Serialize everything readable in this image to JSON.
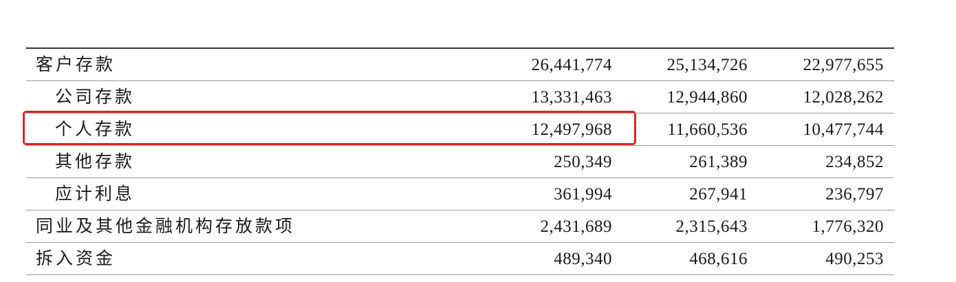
{
  "table": {
    "rows": [
      [
        "客户存款",
        "26,441,774",
        "25,134,726",
        "22,977,655"
      ],
      [
        "公司存款",
        "13,331,463",
        "12,944,860",
        "12,028,262"
      ],
      [
        "个人存款",
        "12,497,968",
        "11,660,536",
        "10,477,744"
      ],
      [
        "其他存款",
        "250,349",
        "261,389",
        "234,852"
      ],
      [
        "应计利息",
        "361,994",
        "267,941",
        "236,797"
      ],
      [
        "同业及其他金融机构存放款项",
        "2,431,689",
        "2,315,643",
        "1,776,320"
      ],
      [
        "拆入资金",
        "489,340",
        "468,616",
        "490,253"
      ]
    ]
  }
}
